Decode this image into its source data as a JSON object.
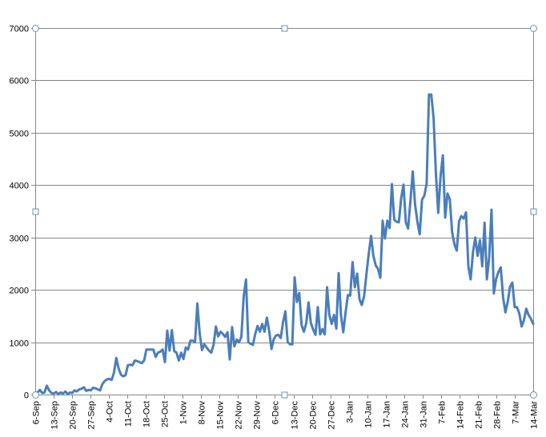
{
  "chart_data": {
    "type": "line",
    "title": "",
    "xlabel": "",
    "ylabel": "",
    "ylim": [
      0,
      7000
    ],
    "y_ticks": [
      0,
      1000,
      2000,
      3000,
      4000,
      5000,
      6000,
      7000
    ],
    "x_tick_labels": [
      "6-Sep",
      "13-Sep",
      "20-Sep",
      "27-Sep",
      "4-Oct",
      "11-Oct",
      "18-Oct",
      "25-Oct",
      "1-Nov",
      "8-Nov",
      "15-Nov",
      "22-Nov",
      "29-Nov",
      "6-Dec",
      "13-Dec",
      "20-Dec",
      "27-Dec",
      "3-Jan",
      "10-Jan",
      "17-Jan",
      "24-Jan",
      "31-Jan",
      "7-Feb",
      "14-Feb",
      "21-Feb",
      "28-Feb",
      "7-Mar",
      "14-Mar"
    ],
    "grid": true,
    "legend": "none",
    "line_color": "#4a7ebb",
    "series": [
      {
        "values": [
          0,
          40,
          90,
          30,
          40,
          170,
          80,
          30,
          20,
          50,
          10,
          40,
          20,
          60,
          10,
          40,
          30,
          80,
          60,
          100,
          110,
          140,
          70,
          90,
          80,
          130,
          120,
          100,
          80,
          200,
          260,
          290,
          300,
          280,
          420,
          700,
          500,
          380,
          350,
          370,
          560,
          570,
          560,
          650,
          640,
          620,
          600,
          650,
          860,
          860,
          860,
          860,
          720,
          800,
          820,
          860,
          620,
          1220,
          840,
          1230,
          830,
          800,
          650,
          800,
          680,
          900,
          860,
          1030,
          1030,
          1000,
          1740,
          1170,
          850,
          960,
          900,
          840,
          800,
          950,
          1300,
          1110,
          1200,
          1160,
          1100,
          1190,
          670,
          1290,
          920,
          1050,
          1000,
          1100,
          1870,
          2200,
          1000,
          970,
          950,
          1160,
          1310,
          1200,
          1350,
          1200,
          1470,
          1220,
          870,
          1060,
          1130,
          1140,
          1080,
          1380,
          1590,
          1000,
          960,
          960,
          2240,
          1770,
          1940,
          1330,
          1200,
          1360,
          1760,
          1370,
          1240,
          1140,
          1670,
          1150,
          1250,
          1150,
          2050,
          1520,
          1350,
          1520,
          1260,
          2320,
          1520,
          1190,
          1570,
          1900,
          1890,
          2530,
          2050,
          2310,
          1820,
          1710,
          1880,
          2300,
          2690,
          3030,
          2650,
          2470,
          2400,
          2230,
          3320,
          2980,
          3320,
          3180,
          4020,
          3340,
          3300,
          3290,
          3750,
          4010,
          3290,
          3170,
          3700,
          4260,
          3630,
          3300,
          3060,
          3720,
          3800,
          4030,
          5730,
          5730,
          5280,
          4220,
          3470,
          4170,
          4570,
          3380,
          3840,
          3730,
          3100,
          2870,
          2750,
          3310,
          3410,
          3360,
          3480,
          2450,
          2200,
          2720,
          3000,
          2650,
          2950,
          2450,
          3280,
          2200,
          2620,
          3530,
          1930,
          2210,
          2340,
          2430,
          1860,
          1570,
          1770,
          2060,
          2140,
          1670,
          1670,
          1550,
          1300,
          1420,
          1640,
          1520,
          1450,
          1350
        ]
      }
    ]
  }
}
